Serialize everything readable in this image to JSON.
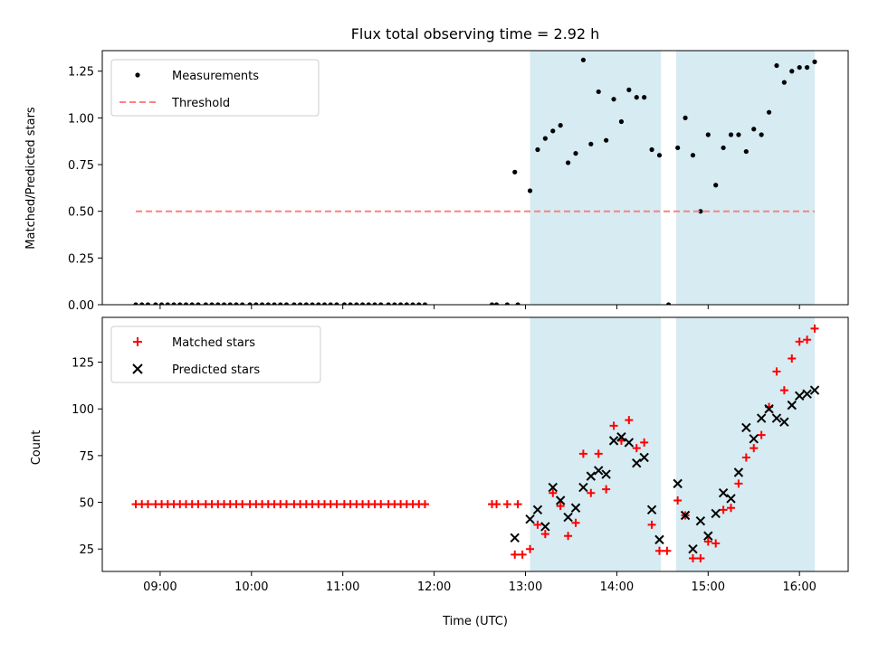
{
  "figure": {
    "title": "Flux total observing time = 2.92 h",
    "xlabel": "Time (UTC)",
    "x_tick_labels": [
      "09:00",
      "10:00",
      "11:00",
      "12:00",
      "13:00",
      "14:00",
      "15:00",
      "16:00"
    ],
    "shaded_intervals": [
      [
        "13:03",
        "14:29"
      ],
      [
        "14:39",
        "16:10"
      ]
    ],
    "shade_color": "#add8e6"
  },
  "chart_data": [
    {
      "type": "scatter",
      "ylabel": "Matched/Predicted stars",
      "ylim": [
        0,
        1.36
      ],
      "y_tick_labels": [
        "0.00",
        "0.25",
        "0.50",
        "0.75",
        "1.00",
        "1.25"
      ],
      "legend_position": "top-left",
      "series": [
        {
          "name": "Measurements",
          "marker": "dot",
          "color": "#000000",
          "points": [
            [
              "08:44",
              0
            ],
            [
              "08:48",
              0
            ],
            [
              "08:52",
              0
            ],
            [
              "08:57",
              0
            ],
            [
              "09:01",
              0
            ],
            [
              "09:05",
              0
            ],
            [
              "09:09",
              0
            ],
            [
              "09:13",
              0
            ],
            [
              "09:17",
              0
            ],
            [
              "09:21",
              0
            ],
            [
              "09:25",
              0
            ],
            [
              "09:30",
              0
            ],
            [
              "09:34",
              0
            ],
            [
              "09:38",
              0
            ],
            [
              "09:42",
              0
            ],
            [
              "09:46",
              0
            ],
            [
              "09:50",
              0
            ],
            [
              "09:54",
              0
            ],
            [
              "09:59",
              0
            ],
            [
              "10:03",
              0
            ],
            [
              "10:07",
              0
            ],
            [
              "10:11",
              0
            ],
            [
              "10:15",
              0
            ],
            [
              "10:19",
              0
            ],
            [
              "10:23",
              0
            ],
            [
              "10:28",
              0
            ],
            [
              "10:32",
              0
            ],
            [
              "10:36",
              0
            ],
            [
              "10:40",
              0
            ],
            [
              "10:44",
              0
            ],
            [
              "10:48",
              0
            ],
            [
              "10:52",
              0
            ],
            [
              "10:56",
              0
            ],
            [
              "11:01",
              0
            ],
            [
              "11:05",
              0
            ],
            [
              "11:09",
              0
            ],
            [
              "11:13",
              0
            ],
            [
              "11:17",
              0
            ],
            [
              "11:21",
              0
            ],
            [
              "11:25",
              0
            ],
            [
              "11:30",
              0
            ],
            [
              "11:34",
              0
            ],
            [
              "11:38",
              0
            ],
            [
              "11:42",
              0
            ],
            [
              "11:46",
              0
            ],
            [
              "11:50",
              0
            ],
            [
              "11:54",
              0
            ],
            [
              "12:38",
              0
            ],
            [
              "12:41",
              0
            ],
            [
              "12:48",
              0
            ],
            [
              "12:55",
              0
            ],
            [
              "12:53",
              0.71
            ],
            [
              "13:03",
              0.61
            ],
            [
              "13:08",
              0.83
            ],
            [
              "13:13",
              0.89
            ],
            [
              "13:18",
              0.93
            ],
            [
              "13:23",
              0.96
            ],
            [
              "13:28",
              0.76
            ],
            [
              "13:33",
              0.81
            ],
            [
              "13:38",
              1.31
            ],
            [
              "13:43",
              0.86
            ],
            [
              "13:48",
              1.14
            ],
            [
              "13:53",
              0.88
            ],
            [
              "13:58",
              1.1
            ],
            [
              "14:03",
              0.98
            ],
            [
              "14:08",
              1.15
            ],
            [
              "14:13",
              1.11
            ],
            [
              "14:18",
              1.11
            ],
            [
              "14:23",
              0.83
            ],
            [
              "14:28",
              0.8
            ],
            [
              "14:34",
              0
            ],
            [
              "14:40",
              0.84
            ],
            [
              "14:45",
              1.0
            ],
            [
              "14:50",
              0.8
            ],
            [
              "14:55",
              0.5
            ],
            [
              "15:00",
              0.91
            ],
            [
              "15:05",
              0.64
            ],
            [
              "15:10",
              0.84
            ],
            [
              "15:15",
              0.91
            ],
            [
              "15:20",
              0.91
            ],
            [
              "15:25",
              0.82
            ],
            [
              "15:30",
              0.94
            ],
            [
              "15:35",
              0.91
            ],
            [
              "15:40",
              1.03
            ],
            [
              "15:45",
              1.28
            ],
            [
              "15:50",
              1.19
            ],
            [
              "15:55",
              1.25
            ],
            [
              "16:00",
              1.27
            ],
            [
              "16:05",
              1.27
            ],
            [
              "16:10",
              1.3
            ]
          ]
        },
        {
          "name": "Threshold",
          "marker": "dashed-line",
          "color": "#ff7f7f",
          "points": [
            [
              "08:44",
              0.5
            ],
            [
              "16:10",
              0.5
            ]
          ]
        }
      ]
    },
    {
      "type": "scatter",
      "ylabel": "Count",
      "ylim": [
        13,
        149
      ],
      "y_tick_labels": [
        "25",
        "50",
        "75",
        "100",
        "125"
      ],
      "legend_position": "top-left",
      "series": [
        {
          "name": "Matched stars",
          "marker": "plus",
          "color": "#ff0000",
          "points": [
            [
              "08:44",
              49
            ],
            [
              "08:48",
              49
            ],
            [
              "08:52",
              49
            ],
            [
              "08:57",
              49
            ],
            [
              "09:01",
              49
            ],
            [
              "09:05",
              49
            ],
            [
              "09:09",
              49
            ],
            [
              "09:13",
              49
            ],
            [
              "09:17",
              49
            ],
            [
              "09:21",
              49
            ],
            [
              "09:25",
              49
            ],
            [
              "09:30",
              49
            ],
            [
              "09:34",
              49
            ],
            [
              "09:38",
              49
            ],
            [
              "09:42",
              49
            ],
            [
              "09:46",
              49
            ],
            [
              "09:50",
              49
            ],
            [
              "09:54",
              49
            ],
            [
              "09:59",
              49
            ],
            [
              "10:03",
              49
            ],
            [
              "10:07",
              49
            ],
            [
              "10:11",
              49
            ],
            [
              "10:15",
              49
            ],
            [
              "10:19",
              49
            ],
            [
              "10:23",
              49
            ],
            [
              "10:28",
              49
            ],
            [
              "10:32",
              49
            ],
            [
              "10:36",
              49
            ],
            [
              "10:40",
              49
            ],
            [
              "10:44",
              49
            ],
            [
              "10:48",
              49
            ],
            [
              "10:52",
              49
            ],
            [
              "10:56",
              49
            ],
            [
              "11:01",
              49
            ],
            [
              "11:05",
              49
            ],
            [
              "11:09",
              49
            ],
            [
              "11:13",
              49
            ],
            [
              "11:17",
              49
            ],
            [
              "11:21",
              49
            ],
            [
              "11:25",
              49
            ],
            [
              "11:30",
              49
            ],
            [
              "11:34",
              49
            ],
            [
              "11:38",
              49
            ],
            [
              "11:42",
              49
            ],
            [
              "11:46",
              49
            ],
            [
              "11:50",
              49
            ],
            [
              "11:54",
              49
            ],
            [
              "12:38",
              49
            ],
            [
              "12:41",
              49
            ],
            [
              "12:48",
              49
            ],
            [
              "12:55",
              49
            ],
            [
              "12:53",
              22
            ],
            [
              "12:58",
              22
            ],
            [
              "13:03",
              25
            ],
            [
              "13:08",
              38
            ],
            [
              "13:13",
              33
            ],
            [
              "13:18",
              55
            ],
            [
              "13:23",
              48
            ],
            [
              "13:28",
              32
            ],
            [
              "13:33",
              39
            ],
            [
              "13:38",
              76
            ],
            [
              "13:43",
              55
            ],
            [
              "13:48",
              76
            ],
            [
              "13:53",
              57
            ],
            [
              "13:58",
              91
            ],
            [
              "14:03",
              83
            ],
            [
              "14:08",
              94
            ],
            [
              "14:13",
              79
            ],
            [
              "14:18",
              82
            ],
            [
              "14:23",
              38
            ],
            [
              "14:28",
              24
            ],
            [
              "14:33",
              24
            ],
            [
              "14:40",
              51
            ],
            [
              "14:45",
              43
            ],
            [
              "14:50",
              20
            ],
            [
              "14:55",
              20
            ],
            [
              "15:00",
              29
            ],
            [
              "15:05",
              28
            ],
            [
              "15:10",
              46
            ],
            [
              "15:15",
              47
            ],
            [
              "15:20",
              60
            ],
            [
              "15:25",
              74
            ],
            [
              "15:30",
              79
            ],
            [
              "15:35",
              86
            ],
            [
              "15:40",
              101
            ],
            [
              "15:45",
              120
            ],
            [
              "15:50",
              110
            ],
            [
              "15:55",
              127
            ],
            [
              "16:00",
              136
            ],
            [
              "16:05",
              137
            ],
            [
              "16:10",
              143
            ]
          ]
        },
        {
          "name": "Predicted stars",
          "marker": "x",
          "color": "#000000",
          "points": [
            [
              "12:53",
              31
            ],
            [
              "13:03",
              41
            ],
            [
              "13:08",
              46
            ],
            [
              "13:13",
              37
            ],
            [
              "13:18",
              58
            ],
            [
              "13:23",
              51
            ],
            [
              "13:28",
              42
            ],
            [
              "13:33",
              47
            ],
            [
              "13:38",
              58
            ],
            [
              "13:43",
              64
            ],
            [
              "13:48",
              67
            ],
            [
              "13:53",
              65
            ],
            [
              "13:58",
              83
            ],
            [
              "14:03",
              85
            ],
            [
              "14:08",
              82
            ],
            [
              "14:13",
              71
            ],
            [
              "14:18",
              74
            ],
            [
              "14:23",
              46
            ],
            [
              "14:28",
              30
            ],
            [
              "14:40",
              60
            ],
            [
              "14:45",
              43
            ],
            [
              "14:50",
              25
            ],
            [
              "14:55",
              40
            ],
            [
              "15:00",
              32
            ],
            [
              "15:05",
              44
            ],
            [
              "15:10",
              55
            ],
            [
              "15:15",
              52
            ],
            [
              "15:20",
              66
            ],
            [
              "15:25",
              90
            ],
            [
              "15:30",
              84
            ],
            [
              "15:35",
              95
            ],
            [
              "15:40",
              100
            ],
            [
              "15:45",
              95
            ],
            [
              "15:50",
              93
            ],
            [
              "15:55",
              102
            ],
            [
              "16:00",
              107
            ],
            [
              "16:05",
              108
            ],
            [
              "16:10",
              110
            ]
          ]
        }
      ]
    }
  ]
}
